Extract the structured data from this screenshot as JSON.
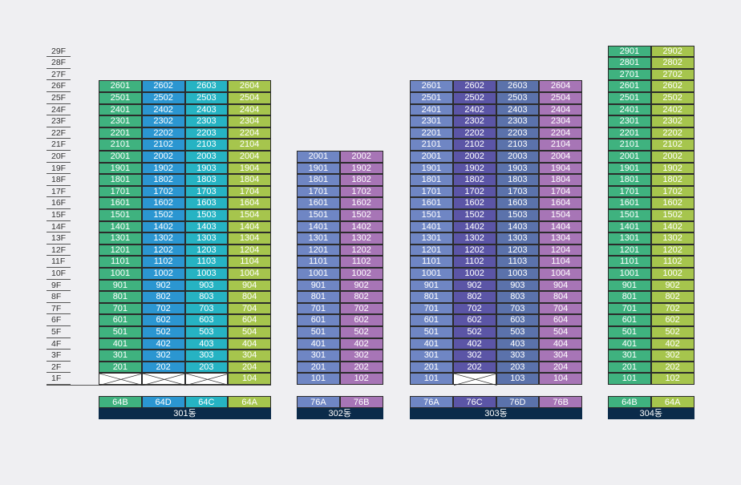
{
  "floors": [
    "1F",
    "2F",
    "3F",
    "4F",
    "5F",
    "6F",
    "7F",
    "8F",
    "9F",
    "10F",
    "11F",
    "12F",
    "13F",
    "14F",
    "15F",
    "16F",
    "17F",
    "18F",
    "19F",
    "20F",
    "21F",
    "22F",
    "23F",
    "24F",
    "25F",
    "26F",
    "27F",
    "28F",
    "29F"
  ],
  "buildings": [
    {
      "label": "301동",
      "columns": [
        {
          "type": "64B",
          "color": "#3fb27f",
          "line": "01",
          "top": 26,
          "empty": [
            1
          ]
        },
        {
          "type": "64D",
          "color": "#2b96d1",
          "line": "02",
          "top": 26,
          "empty": [
            1
          ]
        },
        {
          "type": "64C",
          "color": "#26b3c3",
          "line": "03",
          "top": 26,
          "empty": [
            1
          ]
        },
        {
          "type": "64A",
          "color": "#a6c54d",
          "line": "04",
          "top": 26,
          "empty": []
        }
      ]
    },
    {
      "label": "302동",
      "columns": [
        {
          "type": "76A",
          "color": "#6f86c4",
          "line": "01",
          "top": 20,
          "empty": []
        },
        {
          "type": "76B",
          "color": "#a775b6",
          "line": "02",
          "top": 20,
          "empty": []
        }
      ]
    },
    {
      "label": "303동",
      "columns": [
        {
          "type": "76A",
          "color": "#6f86c4",
          "line": "01",
          "top": 26,
          "empty": []
        },
        {
          "type": "76C",
          "color": "#5b55a6",
          "line": "02",
          "top": 26,
          "empty": [
            1
          ]
        },
        {
          "type": "76D",
          "color": "#5b72ab",
          "line": "03",
          "top": 26,
          "empty": []
        },
        {
          "type": "76B",
          "color": "#a775b6",
          "line": "04",
          "top": 26,
          "empty": []
        }
      ]
    },
    {
      "label": "304동",
      "columns": [
        {
          "type": "64B",
          "color": "#3fb27f",
          "line": "01",
          "top": 29,
          "empty": []
        },
        {
          "type": "64A",
          "color": "#a6c54d",
          "line": "02",
          "top": 29,
          "empty": []
        }
      ]
    }
  ]
}
